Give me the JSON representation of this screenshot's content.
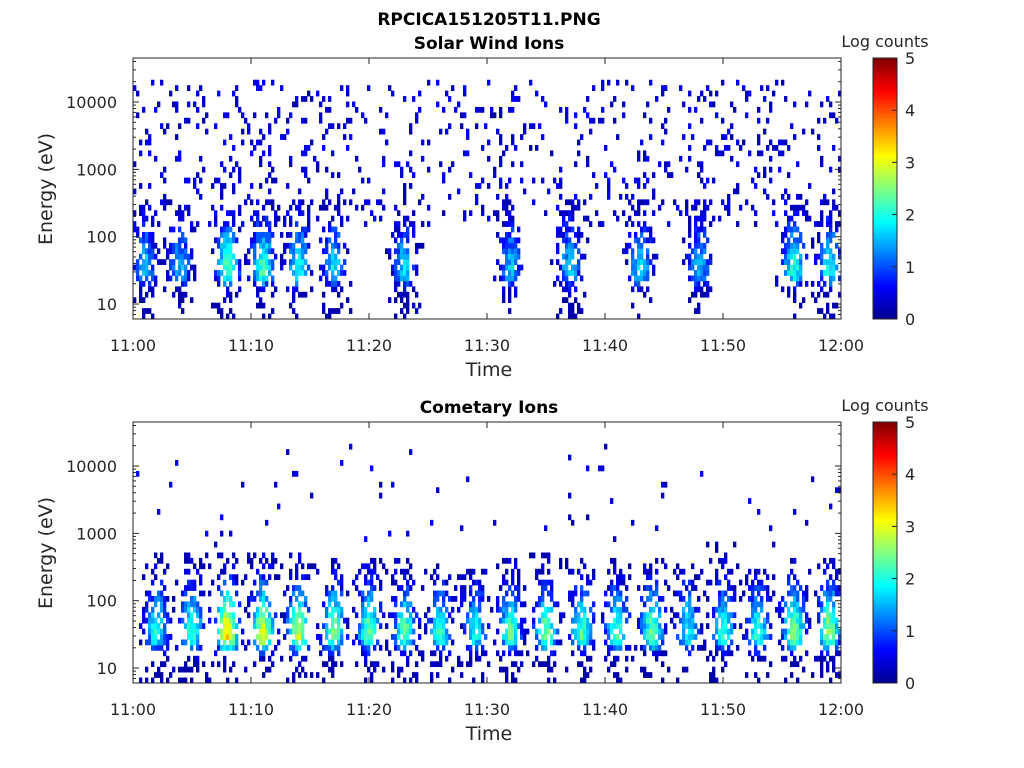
{
  "figure": {
    "title": "RPCICA151205T11.PNG"
  },
  "colormap": {
    "name": "jet",
    "stops": [
      "#00008f",
      "#0000ff",
      "#0080ff",
      "#00ffff",
      "#80ff80",
      "#ffff00",
      "#ff8000",
      "#ff0000",
      "#800000"
    ]
  },
  "chart_data": [
    {
      "type": "heatmap",
      "title": "Solar Wind Ions",
      "xlabel": "Time",
      "ylabel": "Energy (eV)",
      "x_ticks": [
        "11:00",
        "11:10",
        "11:20",
        "11:30",
        "11:40",
        "11:50",
        "12:00"
      ],
      "x_range": [
        "11:00",
        "12:00"
      ],
      "y_scale": "log",
      "y_ticks": [
        "10",
        "100",
        "1000",
        "10000"
      ],
      "y_range": [
        6,
        45000
      ],
      "colorbar": {
        "label": "Log counts",
        "ticks": [
          "0",
          "1",
          "2",
          "3",
          "4",
          "5"
        ],
        "range": [
          0,
          5
        ]
      },
      "features": {
        "background_noise_density": 0.11,
        "noise_energy_range_eV": [
          150,
          20000
        ],
        "low_energy_bursts": [
          {
            "time": "11:01",
            "level": 1.6
          },
          {
            "time": "11:04",
            "level": 1.5
          },
          {
            "time": "11:08",
            "level": 2.3
          },
          {
            "time": "11:11",
            "level": 2.2
          },
          {
            "time": "11:14",
            "level": 2.0
          },
          {
            "time": "11:17",
            "level": 1.8
          },
          {
            "time": "11:23",
            "level": 1.6
          },
          {
            "time": "11:32",
            "level": 1.5
          },
          {
            "time": "11:37",
            "level": 1.6
          },
          {
            "time": "11:43",
            "level": 1.8
          },
          {
            "time": "11:48",
            "level": 1.5
          },
          {
            "time": "11:56",
            "level": 2.0
          },
          {
            "time": "11:59",
            "level": 1.9
          }
        ],
        "peak_energy_eV": 30
      }
    },
    {
      "type": "heatmap",
      "title": "Cometary Ions",
      "xlabel": "Time",
      "ylabel": "Energy (eV)",
      "x_ticks": [
        "11:00",
        "11:10",
        "11:20",
        "11:30",
        "11:40",
        "11:50",
        "12:00"
      ],
      "x_range": [
        "11:00",
        "12:00"
      ],
      "y_scale": "log",
      "y_ticks": [
        "10",
        "100",
        "1000",
        "10000"
      ],
      "y_range": [
        6,
        45000
      ],
      "colorbar": {
        "label": "Log counts",
        "ticks": [
          "0",
          "1",
          "2",
          "3",
          "4",
          "5"
        ],
        "range": [
          0,
          5
        ]
      },
      "features": {
        "background_noise_density": 0.012,
        "noise_energy_range_eV": [
          600,
          20000
        ],
        "bursts": [
          {
            "time": "11:02",
            "level": 2.0,
            "max_eV": 500
          },
          {
            "time": "11:05",
            "level": 2.2,
            "max_eV": 500
          },
          {
            "time": "11:08",
            "level": 3.3,
            "max_eV": 550
          },
          {
            "time": "11:11",
            "level": 3.0,
            "max_eV": 550
          },
          {
            "time": "11:14",
            "level": 2.8,
            "max_eV": 500
          },
          {
            "time": "11:17",
            "level": 2.5,
            "max_eV": 450
          },
          {
            "time": "11:20",
            "level": 2.4,
            "max_eV": 450
          },
          {
            "time": "11:23",
            "level": 2.3,
            "max_eV": 450
          },
          {
            "time": "11:26",
            "level": 2.1,
            "max_eV": 350
          },
          {
            "time": "11:29",
            "level": 1.9,
            "max_eV": 300
          },
          {
            "time": "11:32",
            "level": 2.3,
            "max_eV": 450
          },
          {
            "time": "11:35",
            "level": 2.4,
            "max_eV": 500
          },
          {
            "time": "11:38",
            "level": 2.2,
            "max_eV": 450
          },
          {
            "time": "11:41",
            "level": 2.2,
            "max_eV": 400
          },
          {
            "time": "11:44",
            "level": 2.4,
            "max_eV": 450
          },
          {
            "time": "11:47",
            "level": 1.9,
            "max_eV": 350
          },
          {
            "time": "11:50",
            "level": 2.1,
            "max_eV": 700
          },
          {
            "time": "11:53",
            "level": 2.1,
            "max_eV": 300
          },
          {
            "time": "11:56",
            "level": 2.5,
            "max_eV": 450
          },
          {
            "time": "11:59",
            "level": 2.6,
            "max_eV": 450
          }
        ],
        "peak_energy_eV": 30
      }
    }
  ]
}
